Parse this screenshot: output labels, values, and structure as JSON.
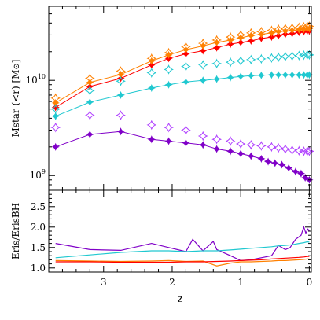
{
  "chart_data": [
    {
      "type": "line",
      "panel": "top",
      "ylabel": "Mstar (<r) [M",
      "ylabel_symbol": "⊙",
      "ylabel_suffix": "]",
      "yscale": "log",
      "xlim": [
        3.8,
        -0.03
      ],
      "ylim": [
        700000000.0,
        60000000000.0
      ],
      "yticks": [
        {
          "value": 1000000000.0,
          "base": "10",
          "exp": "9"
        },
        {
          "value": 10000000000.0,
          "base": "10",
          "exp": "10"
        }
      ],
      "series": [
        {
          "color": "#ff0000",
          "marker": "diamond",
          "line": true,
          "x": [
            3.7,
            3.2,
            2.75,
            2.3,
            2.05,
            1.8,
            1.55,
            1.35,
            1.15,
            1.0,
            0.85,
            0.7,
            0.55,
            0.45,
            0.35,
            0.25,
            0.15,
            0.08,
            0.03,
            0.0
          ],
          "y": [
            5200000000.0,
            8600000000.0,
            10500000000.0,
            14500000000.0,
            17000000000.0,
            19000000000.0,
            20500000000.0,
            22000000000.0,
            24000000000.0,
            25000000000.0,
            26000000000.0,
            27500000000.0,
            28500000000.0,
            29500000000.0,
            30500000000.0,
            31000000000.0,
            32000000000.0,
            32500000000.0,
            33000000000.0,
            33000000000.0
          ]
        },
        {
          "color": "#ff8000",
          "marker": "diamond",
          "line": true,
          "x": [
            3.7,
            3.2,
            2.75,
            2.3,
            2.05,
            1.8,
            1.55,
            1.35,
            1.15,
            1.0,
            0.85,
            0.7,
            0.55,
            0.45,
            0.35,
            0.25,
            0.15,
            0.08,
            0.03,
            0.0
          ],
          "y": [
            5800000000.0,
            9500000000.0,
            11500000000.0,
            16000000000.0,
            18500000000.0,
            21000000000.0,
            23000000000.0,
            25000000000.0,
            26500000000.0,
            28000000000.0,
            29500000000.0,
            30500000000.0,
            31500000000.0,
            32500000000.0,
            33000000000.0,
            33500000000.0,
            34000000000.0,
            34500000000.0,
            35000000000.0,
            35000000000.0
          ]
        },
        {
          "color": "#ff8000",
          "marker": "open-diamond",
          "line": false,
          "x": [
            3.7,
            3.2,
            2.75,
            2.3,
            2.05,
            1.8,
            1.55,
            1.35,
            1.15,
            1.0,
            0.85,
            0.7,
            0.55,
            0.45,
            0.35,
            0.25,
            0.15,
            0.08,
            0.03,
            0.0
          ],
          "y": [
            6500000000.0,
            10500000000.0,
            12500000000.0,
            17000000000.0,
            19500000000.0,
            22500000000.0,
            24500000000.0,
            26500000000.0,
            28500000000.0,
            30000000000.0,
            31500000000.0,
            32500000000.0,
            33500000000.0,
            34500000000.0,
            35000000000.0,
            35500000000.0,
            36000000000.0,
            36500000000.0,
            37000000000.0,
            37000000000.0
          ]
        },
        {
          "color": "#20c8d0",
          "marker": "diamond",
          "line": true,
          "x": [
            3.7,
            3.2,
            2.75,
            2.3,
            2.05,
            1.8,
            1.55,
            1.35,
            1.15,
            1.0,
            0.85,
            0.7,
            0.55,
            0.45,
            0.35,
            0.25,
            0.15,
            0.08,
            0.03,
            0.0
          ],
          "y": [
            4200000000.0,
            5900000000.0,
            7000000000.0,
            8300000000.0,
            9000000000.0,
            9600000000.0,
            10000000000.0,
            10300000000.0,
            10700000000.0,
            11000000000.0,
            11200000000.0,
            11300000000.0,
            11400000000.0,
            11400000000.0,
            11400000000.0,
            11400000000.0,
            11400000000.0,
            11400000000.0,
            11400000000.0,
            11400000000.0
          ]
        },
        {
          "color": "#20c8d0",
          "marker": "open-diamond",
          "line": false,
          "x": [
            3.7,
            3.2,
            2.75,
            2.3,
            2.05,
            1.8,
            1.55,
            1.35,
            1.15,
            1.0,
            0.85,
            0.7,
            0.55,
            0.45,
            0.35,
            0.25,
            0.15,
            0.08,
            0.03,
            0.0
          ],
          "y": [
            5000000000.0,
            7800000000.0,
            9800000000.0,
            12000000000.0,
            13000000000.0,
            14000000000.0,
            14500000000.0,
            15000000000.0,
            15500000000.0,
            16000000000.0,
            16500000000.0,
            16800000000.0,
            17200000000.0,
            17500000000.0,
            17800000000.0,
            18000000000.0,
            18200000000.0,
            18400000000.0,
            18500000000.0,
            18500000000.0
          ]
        },
        {
          "color": "#8000c8",
          "marker": "diamond",
          "line": true,
          "x": [
            3.7,
            3.2,
            2.75,
            2.3,
            2.05,
            1.8,
            1.55,
            1.35,
            1.15,
            1.0,
            0.85,
            0.7,
            0.6,
            0.5,
            0.4,
            0.3,
            0.2,
            0.12,
            0.06,
            0.0
          ],
          "y": [
            2000000000.0,
            2700000000.0,
            2900000000.0,
            2400000000.0,
            2300000000.0,
            2200000000.0,
            2100000000.0,
            1900000000.0,
            1800000000.0,
            1700000000.0,
            1600000000.0,
            1500000000.0,
            1400000000.0,
            1350000000.0,
            1300000000.0,
            1200000000.0,
            1100000000.0,
            1050000000.0,
            950000000.0,
            900000000.0
          ]
        },
        {
          "color": "#b040ff",
          "marker": "open-diamond",
          "line": false,
          "x": [
            3.7,
            3.2,
            2.75,
            2.3,
            2.05,
            1.8,
            1.55,
            1.35,
            1.15,
            1.0,
            0.85,
            0.7,
            0.55,
            0.45,
            0.35,
            0.25,
            0.15,
            0.08,
            0.03,
            0.0
          ],
          "y": [
            3200000000.0,
            4300000000.0,
            4300000000.0,
            3400000000.0,
            3200000000.0,
            3000000000.0,
            2600000000.0,
            2400000000.0,
            2300000000.0,
            2150000000.0,
            2100000000.0,
            2050000000.0,
            2000000000.0,
            1950000000.0,
            1900000000.0,
            1850000000.0,
            1820000000.0,
            1800000000.0,
            1800000000.0,
            1800000000.0
          ]
        }
      ]
    },
    {
      "type": "line",
      "panel": "bottom",
      "ylabel": "Eris/ErisBH",
      "xlabel": "z",
      "xlim": [
        3.8,
        -0.03
      ],
      "ylim": [
        0.9,
        2.9
      ],
      "xticks": [
        {
          "value": 3,
          "label": "3"
        },
        {
          "value": 2,
          "label": "2"
        },
        {
          "value": 1,
          "label": "1"
        },
        {
          "value": 0,
          "label": "0"
        }
      ],
      "yticks": [
        {
          "value": 1.0,
          "label": "1.0"
        },
        {
          "value": 1.5,
          "label": "1.5"
        },
        {
          "value": 2.0,
          "label": "2.0"
        },
        {
          "value": 2.5,
          "label": "2.5"
        }
      ],
      "series": [
        {
          "color": "#8000c8",
          "x": [
            3.7,
            3.2,
            2.75,
            2.3,
            2.05,
            1.8,
            1.7,
            1.55,
            1.4,
            1.35,
            1.15,
            1.0,
            0.85,
            0.7,
            0.55,
            0.45,
            0.35,
            0.28,
            0.2,
            0.12,
            0.08,
            0.05,
            0.02,
            0.0
          ],
          "y": [
            1.6,
            1.45,
            1.43,
            1.6,
            1.5,
            1.4,
            1.7,
            1.42,
            1.65,
            1.45,
            1.3,
            1.18,
            1.2,
            1.25,
            1.3,
            1.55,
            1.45,
            1.5,
            1.7,
            1.8,
            2.0,
            1.85,
            1.95,
            1.9
          ]
        },
        {
          "color": "#20c8d0",
          "x": [
            3.7,
            3.2,
            2.75,
            2.3,
            2.05,
            1.8,
            1.55,
            1.35,
            1.15,
            1.0,
            0.85,
            0.7,
            0.55,
            0.45,
            0.35,
            0.25,
            0.15,
            0.08,
            0.03,
            0.0
          ],
          "y": [
            1.25,
            1.32,
            1.38,
            1.42,
            1.42,
            1.4,
            1.42,
            1.42,
            1.44,
            1.46,
            1.48,
            1.5,
            1.52,
            1.54,
            1.55,
            1.57,
            1.6,
            1.62,
            1.64,
            1.63
          ]
        },
        {
          "color": "#ff8000",
          "x": [
            3.7,
            3.2,
            2.75,
            2.3,
            2.05,
            1.8,
            1.55,
            1.35,
            1.15,
            1.0,
            0.85,
            0.7,
            0.55,
            0.45,
            0.35,
            0.25,
            0.15,
            0.08,
            0.03,
            0.0
          ],
          "y": [
            1.18,
            1.17,
            1.16,
            1.17,
            1.18,
            1.16,
            1.17,
            1.05,
            1.12,
            1.15,
            1.15,
            1.16,
            1.17,
            1.18,
            1.18,
            1.19,
            1.2,
            1.21,
            1.22,
            1.22
          ]
        },
        {
          "color": "#ff0000",
          "x": [
            3.7,
            3.2,
            2.75,
            2.3,
            2.05,
            1.8,
            1.55,
            1.35,
            1.15,
            1.0,
            0.85,
            0.7,
            0.55,
            0.45,
            0.35,
            0.25,
            0.15,
            0.08,
            0.03,
            0.0
          ],
          "y": [
            1.15,
            1.15,
            1.14,
            1.14,
            1.14,
            1.15,
            1.15,
            1.16,
            1.17,
            1.18,
            1.19,
            1.2,
            1.22,
            1.23,
            1.24,
            1.25,
            1.26,
            1.27,
            1.28,
            1.28
          ]
        }
      ]
    }
  ]
}
